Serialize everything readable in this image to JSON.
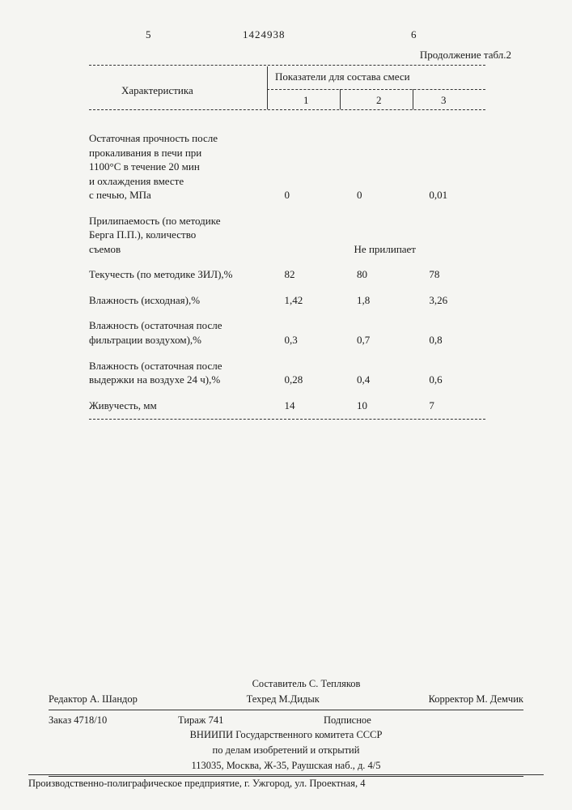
{
  "header": {
    "col_left": "5",
    "col_right": "6",
    "patent_number": "1424938",
    "continuation": "Продолжение табл.2"
  },
  "table": {
    "char_label": "Характеристика",
    "sub_header": "Показатели для состава смеси",
    "cols": [
      "1",
      "2",
      "3"
    ],
    "rows": [
      {
        "desc_lines": [
          "Остаточная прочность после",
          "прокаливания в печи при",
          "1100°С в течение 20 мин",
          "и охлаждения вместе",
          "с печью, МПа"
        ],
        "v1": "0",
        "v2": "0",
        "v3": "0,01"
      },
      {
        "desc_lines": [
          "Прилипаемость (по методике",
          "Берга П.П.), количество",
          "съемов"
        ],
        "span": "Не прилипает"
      },
      {
        "desc_lines": [
          "Текучесть (по методике ЗИЛ),%"
        ],
        "v1": "82",
        "v2": "80",
        "v3": "78"
      },
      {
        "desc_lines": [
          "Влажность (исходная),%"
        ],
        "v1": "1,42",
        "v2": "1,8",
        "v3": "3,26"
      },
      {
        "desc_lines": [
          "Влажность (остаточная после",
          "фильтрации воздухом),%"
        ],
        "v1": "0,3",
        "v2": "0,7",
        "v3": "0,8"
      },
      {
        "desc_lines": [
          "Влажность (остаточная после",
          "выдержки на воздухе 24 ч),%"
        ],
        "v1": "0,28",
        "v2": "0,4",
        "v3": "0,6"
      },
      {
        "desc_lines": [
          "Живучесть, мм"
        ],
        "v1": "14",
        "v2": "10",
        "v3": "7"
      }
    ]
  },
  "credits": {
    "compiler": "Составитель С. Тепляков",
    "editor": "Редактор А. Шандор",
    "techred": "Техред М.Дидык",
    "corrector": "Корректор М. Демчик",
    "order": "Заказ 4718/10",
    "tirage": "Тираж 741",
    "subscription": "Подписное",
    "org1": "ВНИИПИ Государственного комитета СССР",
    "org2": "по делам изобретений и открытий",
    "addr": "113035, Москва, Ж-35, Раушская наб., д. 4/5"
  },
  "footer": "Производственно-полиграфическое предприятие, г. Ужгород, ул. Проектная, 4"
}
